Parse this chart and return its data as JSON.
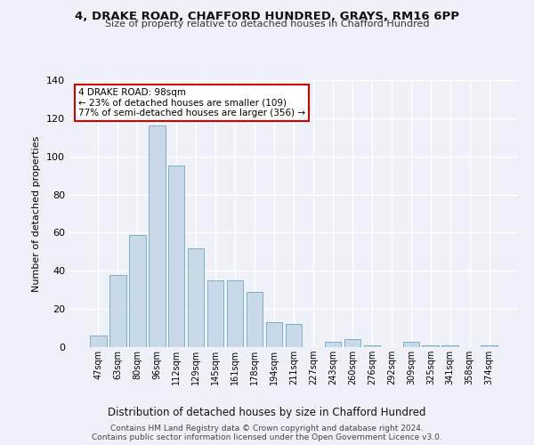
{
  "title": "4, DRAKE ROAD, CHAFFORD HUNDRED, GRAYS, RM16 6PP",
  "subtitle": "Size of property relative to detached houses in Chafford Hundred",
  "xlabel": "Distribution of detached houses by size in Chafford Hundred",
  "ylabel": "Number of detached properties",
  "categories": [
    "47sqm",
    "63sqm",
    "80sqm",
    "96sqm",
    "112sqm",
    "129sqm",
    "145sqm",
    "161sqm",
    "178sqm",
    "194sqm",
    "211sqm",
    "227sqm",
    "243sqm",
    "260sqm",
    "276sqm",
    "292sqm",
    "309sqm",
    "325sqm",
    "341sqm",
    "358sqm",
    "374sqm"
  ],
  "values": [
    6,
    38,
    59,
    116,
    95,
    52,
    35,
    35,
    29,
    13,
    12,
    0,
    3,
    4,
    1,
    0,
    3,
    1,
    1,
    0,
    1
  ],
  "bar_color": "#c9d9e8",
  "bar_edge_color": "#7aafc8",
  "background_color": "#eef2f8",
  "annotation_line1": "4 DRAKE ROAD: 98sqm",
  "annotation_line2": "← 23% of detached houses are smaller (109)",
  "annotation_line3": "77% of semi-detached houses are larger (356) →",
  "annotation_box_color": "white",
  "annotation_box_edge": "#cc0000",
  "ylim": [
    0,
    140
  ],
  "yticks": [
    0,
    20,
    40,
    60,
    80,
    100,
    120,
    140
  ],
  "footer_line1": "Contains HM Land Registry data © Crown copyright and database right 2024.",
  "footer_line2": "Contains public sector information licensed under the Open Government Licence v3.0."
}
